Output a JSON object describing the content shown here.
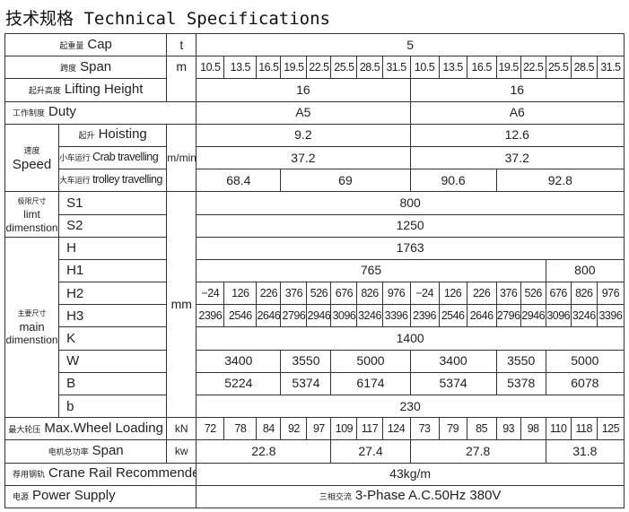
{
  "title": "技术规格 Technical Specifications",
  "cap": {
    "cn": "起重量",
    "en": "Cap",
    "unit": "t",
    "value": "5"
  },
  "span": {
    "cn": "跨度",
    "en": "Span",
    "unit": "m",
    "values": [
      "10.5",
      "13.5",
      "16.5",
      "19.5",
      "22.5",
      "25.5",
      "28.5",
      "31.5",
      "10.5",
      "13.5",
      "16.5",
      "19.5",
      "22.5",
      "25.5",
      "28.5",
      "31.5"
    ]
  },
  "lifting": {
    "cn": "起升高度",
    "en": "Lifting Height",
    "values": [
      "16",
      "16"
    ]
  },
  "duty": {
    "cn": "工作制度",
    "en": "Duty",
    "values": [
      "A5",
      "A6"
    ]
  },
  "speed": {
    "cn": "速度",
    "en": "Speed",
    "unit": "m/min",
    "hoisting": {
      "cn": "起升",
      "en": "Hoisting",
      "values": [
        "9.2",
        "12.6"
      ]
    },
    "crab": {
      "cn": "小车运行",
      "en": "Crab travelling",
      "values": [
        "37.2",
        "37.2"
      ]
    },
    "trolley": {
      "cn": "大车运行",
      "en": "trolley travelling",
      "values": [
        "68.4",
        "69",
        "90.6",
        "92.8"
      ]
    }
  },
  "limit": {
    "cn": "极限尺寸",
    "en1": "limt",
    "en2": "dimenstion",
    "s1": {
      "label": "S1",
      "value": "800"
    },
    "s2": {
      "label": "S2",
      "value": "1250"
    }
  },
  "main": {
    "cn": "主要尺寸",
    "en1": "main",
    "en2": "dimenstion",
    "unit": "mm",
    "H": {
      "label": "H",
      "value": "1763"
    },
    "H1": {
      "label": "H1",
      "values": [
        "765",
        "800"
      ]
    },
    "H2": {
      "label": "H2",
      "values": [
        "−24",
        "126",
        "226",
        "376",
        "526",
        "676",
        "826",
        "976",
        "−24",
        "126",
        "226",
        "376",
        "526",
        "676",
        "826",
        "976"
      ]
    },
    "H3": {
      "label": "H3",
      "values": [
        "2396",
        "2546",
        "2646",
        "2796",
        "2946",
        "3096",
        "3246",
        "3396",
        "2396",
        "2546",
        "2646",
        "2796",
        "2946",
        "3096",
        "3246",
        "3396"
      ]
    },
    "K": {
      "label": "K",
      "value": "1400"
    },
    "W": {
      "label": "W",
      "values": [
        "3400",
        "3550",
        "5000",
        "3400",
        "3550",
        "5000"
      ]
    },
    "B": {
      "label": "B",
      "values": [
        "5224",
        "5374",
        "6174",
        "5374",
        "5378",
        "6078"
      ]
    },
    "b": {
      "label": "b",
      "value": "230"
    }
  },
  "wheel": {
    "cn": "最大轮压",
    "en": "Max.Wheel Loading",
    "unit": "kN",
    "values": [
      "72",
      "78",
      "84",
      "92",
      "97",
      "109",
      "117",
      "124",
      "73",
      "79",
      "85",
      "93",
      "98",
      "110",
      "118",
      "125"
    ]
  },
  "motor": {
    "cn": "电机总功率",
    "en": "Span",
    "unit": "kw",
    "values": [
      "22.8",
      "27.4",
      "27.8",
      "31.8"
    ]
  },
  "rail": {
    "cn": "荐用钢轨",
    "en": "Crane Rail Recommended",
    "value": "43kg/m"
  },
  "power": {
    "cn": "电源",
    "en": "Power Supply",
    "value_cn": "三相交流",
    "value": "3-Phase A.C.50Hz 380V"
  }
}
